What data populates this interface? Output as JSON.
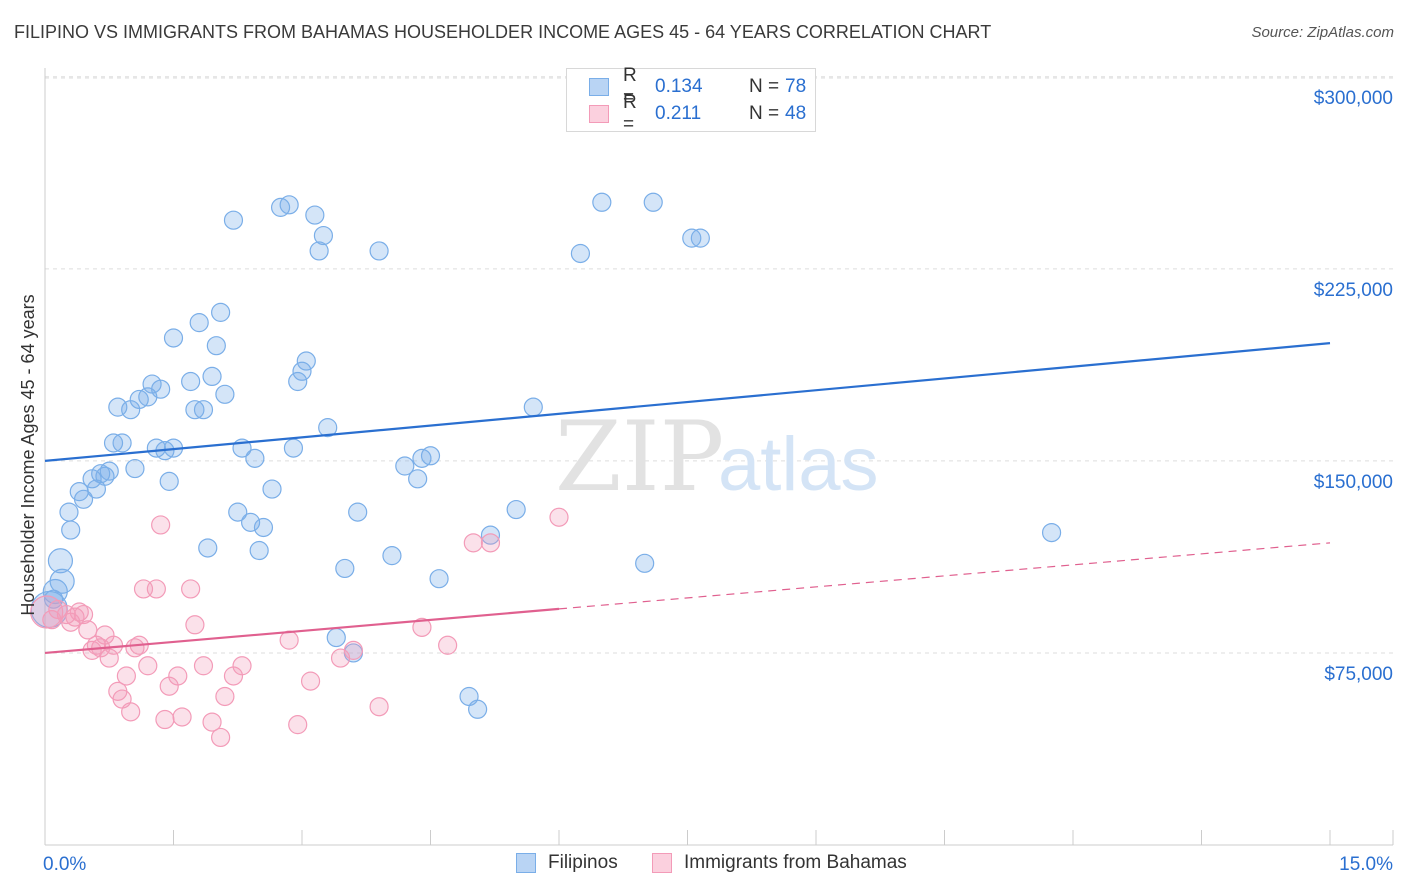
{
  "title": "FILIPINO VS IMMIGRANTS FROM BAHAMAS HOUSEHOLDER INCOME AGES 45 - 64 YEARS CORRELATION CHART",
  "source": "Source: ZipAtlas.com",
  "watermark": {
    "zip": "ZIP",
    "atlas": "atlas"
  },
  "legend_top": {
    "r_label": "R =",
    "n_label": "N =",
    "series": [
      {
        "r": "0.134",
        "n": "78",
        "color": "#7aaee8"
      },
      {
        "r": "0.211",
        "n": "48",
        "color": "#f39bb8"
      }
    ]
  },
  "legend_bottom": {
    "filipinos": "Filipinos",
    "bahamas": "Immigrants from Bahamas"
  },
  "chart_data": {
    "type": "scatter",
    "title": "FILIPINO VS IMMIGRANTS FROM BAHAMAS HOUSEHOLDER INCOME AGES 45 - 64 YEARS CORRELATION CHART",
    "xlabel": "",
    "ylabel": "Householder Income Ages 45 - 64 years",
    "xlim": [
      0,
      15
    ],
    "ylim": [
      0,
      305000
    ],
    "x_tick_labels": [
      "0.0%",
      "15.0%"
    ],
    "y_ticks": [
      75000,
      150000,
      225000,
      300000
    ],
    "y_tick_labels": [
      "$75,000",
      "$150,000",
      "$225,000",
      "$300,000"
    ],
    "grid": true,
    "series": [
      {
        "name": "Filipinos",
        "color": "#7aaee8",
        "line_color": "#2a6fd0",
        "trend": {
          "x0": 0,
          "y0": 150000,
          "x1": 15,
          "y1": 196000,
          "solid_until": 15
        },
        "points": [
          [
            0.05,
            92000
          ],
          [
            0.12,
            99000
          ],
          [
            0.2,
            103000
          ],
          [
            0.18,
            111000
          ],
          [
            0.3,
            123000
          ],
          [
            0.28,
            130000
          ],
          [
            0.4,
            138000
          ],
          [
            0.45,
            135000
          ],
          [
            0.55,
            143000
          ],
          [
            0.6,
            139000
          ],
          [
            0.65,
            145000
          ],
          [
            0.7,
            144000
          ],
          [
            0.75,
            146000
          ],
          [
            0.8,
            157000
          ],
          [
            0.9,
            157000
          ],
          [
            0.85,
            171000
          ],
          [
            1.0,
            170000
          ],
          [
            1.05,
            147000
          ],
          [
            1.1,
            174000
          ],
          [
            1.2,
            175000
          ],
          [
            1.25,
            180000
          ],
          [
            1.35,
            178000
          ],
          [
            1.3,
            155000
          ],
          [
            1.4,
            154000
          ],
          [
            1.5,
            155000
          ],
          [
            1.45,
            142000
          ],
          [
            1.5,
            198000
          ],
          [
            1.7,
            181000
          ],
          [
            1.75,
            170000
          ],
          [
            1.85,
            170000
          ],
          [
            1.8,
            204000
          ],
          [
            1.95,
            183000
          ],
          [
            2.0,
            195000
          ],
          [
            2.05,
            208000
          ],
          [
            2.1,
            176000
          ],
          [
            2.2,
            244000
          ],
          [
            2.25,
            130000
          ],
          [
            2.3,
            155000
          ],
          [
            2.4,
            126000
          ],
          [
            2.45,
            151000
          ],
          [
            2.5,
            115000
          ],
          [
            2.55,
            124000
          ],
          [
            2.65,
            139000
          ],
          [
            1.9,
            116000
          ],
          [
            2.75,
            249000
          ],
          [
            2.85,
            250000
          ],
          [
            2.9,
            155000
          ],
          [
            2.95,
            181000
          ],
          [
            3.0,
            185000
          ],
          [
            3.05,
            189000
          ],
          [
            3.15,
            246000
          ],
          [
            3.2,
            232000
          ],
          [
            3.25,
            238000
          ],
          [
            3.3,
            163000
          ],
          [
            3.5,
            108000
          ],
          [
            3.6,
            75000
          ],
          [
            3.65,
            130000
          ],
          [
            3.4,
            81000
          ],
          [
            3.9,
            232000
          ],
          [
            4.05,
            113000
          ],
          [
            4.2,
            148000
          ],
          [
            4.35,
            143000
          ],
          [
            4.4,
            151000
          ],
          [
            4.5,
            152000
          ],
          [
            4.6,
            104000
          ],
          [
            4.95,
            58000
          ],
          [
            5.05,
            53000
          ],
          [
            5.2,
            121000
          ],
          [
            5.5,
            131000
          ],
          [
            5.7,
            171000
          ],
          [
            6.25,
            231000
          ],
          [
            6.5,
            251000
          ],
          [
            7.0,
            110000
          ],
          [
            7.1,
            251000
          ],
          [
            7.55,
            237000
          ],
          [
            7.65,
            237000
          ],
          [
            11.75,
            122000
          ],
          [
            0.1,
            96000
          ]
        ]
      },
      {
        "name": "Immigrants from Bahamas",
        "color": "#f39bb8",
        "line_color": "#e0608f",
        "trend": {
          "x0": 0,
          "y0": 75000,
          "x1": 15,
          "y1": 118000,
          "solid_until": 6
        },
        "points": [
          [
            0.02,
            91000
          ],
          [
            0.08,
            88000
          ],
          [
            0.15,
            92000
          ],
          [
            0.25,
            90000
          ],
          [
            0.3,
            87000
          ],
          [
            0.35,
            89000
          ],
          [
            0.4,
            91000
          ],
          [
            0.5,
            84000
          ],
          [
            0.55,
            76000
          ],
          [
            0.6,
            78000
          ],
          [
            0.65,
            77000
          ],
          [
            0.7,
            82000
          ],
          [
            0.75,
            73000
          ],
          [
            0.8,
            78000
          ],
          [
            0.85,
            60000
          ],
          [
            0.9,
            57000
          ],
          [
            0.95,
            66000
          ],
          [
            1.0,
            52000
          ],
          [
            1.05,
            77000
          ],
          [
            1.1,
            78000
          ],
          [
            1.15,
            100000
          ],
          [
            1.2,
            70000
          ],
          [
            1.3,
            100000
          ],
          [
            1.35,
            125000
          ],
          [
            1.4,
            49000
          ],
          [
            1.45,
            62000
          ],
          [
            1.55,
            66000
          ],
          [
            1.6,
            50000
          ],
          [
            1.7,
            100000
          ],
          [
            1.75,
            86000
          ],
          [
            1.85,
            70000
          ],
          [
            1.95,
            48000
          ],
          [
            2.05,
            42000
          ],
          [
            2.1,
            58000
          ],
          [
            2.2,
            66000
          ],
          [
            2.3,
            70000
          ],
          [
            2.85,
            80000
          ],
          [
            2.95,
            47000
          ],
          [
            3.1,
            64000
          ],
          [
            3.45,
            73000
          ],
          [
            3.6,
            76000
          ],
          [
            3.9,
            54000
          ],
          [
            4.4,
            85000
          ],
          [
            4.7,
            78000
          ],
          [
            5.0,
            118000
          ],
          [
            5.2,
            118000
          ],
          [
            6.0,
            128000
          ],
          [
            0.45,
            90000
          ]
        ]
      }
    ]
  }
}
